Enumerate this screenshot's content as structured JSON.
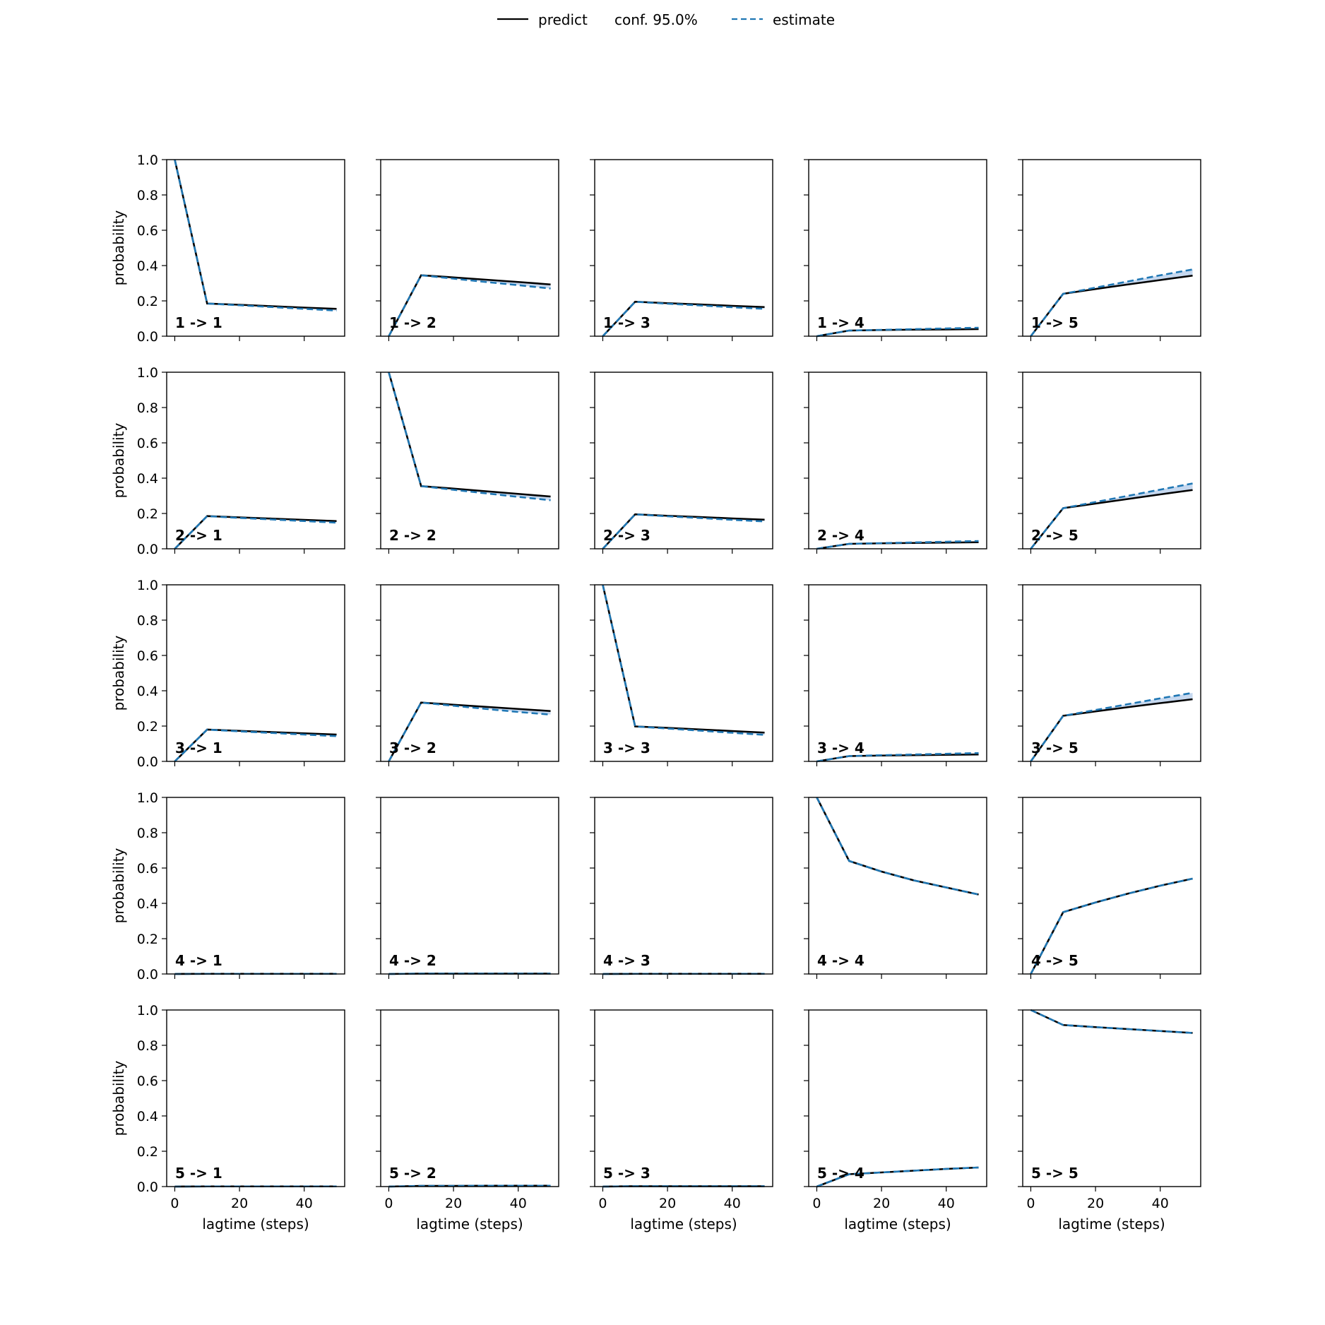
{
  "legend": {
    "items": [
      {
        "label": "predict",
        "style": "solid",
        "color": "#000000"
      },
      {
        "label": "conf. 95.0%",
        "style": "fill",
        "color": "#1f77b4"
      },
      {
        "label": "estimate",
        "style": "dashed",
        "color": "#1f77b4"
      }
    ]
  },
  "colors": {
    "predict": "#000000",
    "estimate": "#1f77b4",
    "confidence_fill": "#aec7e8"
  },
  "chart_data": {
    "type": "line",
    "layout": "5x5 grid of subplots, shared axes",
    "xlabel": "lagtime (steps)",
    "ylabel": "probability",
    "xlim": [
      -2.5,
      52.5
    ],
    "ylim": [
      0,
      1
    ],
    "xticks": [
      0,
      20,
      40
    ],
    "yticks": [
      0.0,
      0.2,
      0.4,
      0.6,
      0.8,
      1.0
    ],
    "x": [
      0,
      10,
      20,
      30,
      40,
      50
    ],
    "legend_position": "top-center",
    "panels": [
      {
        "label": "1 -> 1",
        "predict": [
          1.0,
          0.185,
          0.178,
          0.17,
          0.162,
          0.155
        ],
        "estimate": [
          1.0,
          0.185,
          0.175,
          0.165,
          0.155,
          0.145
        ]
      },
      {
        "label": "1 -> 2",
        "predict": [
          0.0,
          0.345,
          0.333,
          0.32,
          0.307,
          0.293
        ],
        "estimate": [
          0.0,
          0.345,
          0.326,
          0.307,
          0.289,
          0.27
        ]
      },
      {
        "label": "1 -> 3",
        "predict": [
          0.0,
          0.195,
          0.187,
          0.18,
          0.172,
          0.165
        ],
        "estimate": [
          0.0,
          0.195,
          0.184,
          0.174,
          0.164,
          0.155
        ]
      },
      {
        "label": "1 -> 4",
        "predict": [
          0.0,
          0.032,
          0.035,
          0.037,
          0.038,
          0.04
        ],
        "estimate": [
          0.0,
          0.032,
          0.036,
          0.04,
          0.044,
          0.048
        ]
      },
      {
        "label": "1 -> 5",
        "predict": [
          0.0,
          0.24,
          0.267,
          0.293,
          0.318,
          0.343
        ],
        "estimate": [
          0.0,
          0.24,
          0.275,
          0.31,
          0.345,
          0.378
        ]
      },
      {
        "label": "2 -> 1",
        "predict": [
          0.0,
          0.185,
          0.178,
          0.171,
          0.164,
          0.157
        ],
        "estimate": [
          0.0,
          0.185,
          0.175,
          0.166,
          0.157,
          0.148
        ]
      },
      {
        "label": "2 -> 2",
        "predict": [
          1.0,
          0.355,
          0.341,
          0.326,
          0.311,
          0.296
        ],
        "estimate": [
          1.0,
          0.355,
          0.334,
          0.314,
          0.294,
          0.275
        ]
      },
      {
        "label": "2 -> 3",
        "predict": [
          0.0,
          0.195,
          0.187,
          0.18,
          0.172,
          0.165
        ],
        "estimate": [
          0.0,
          0.195,
          0.184,
          0.174,
          0.164,
          0.155
        ]
      },
      {
        "label": "2 -> 4",
        "predict": [
          0.0,
          0.028,
          0.031,
          0.033,
          0.035,
          0.037
        ],
        "estimate": [
          0.0,
          0.028,
          0.032,
          0.036,
          0.04,
          0.044
        ]
      },
      {
        "label": "2 -> 5",
        "predict": [
          0.0,
          0.23,
          0.256,
          0.282,
          0.308,
          0.333
        ],
        "estimate": [
          0.0,
          0.23,
          0.265,
          0.3,
          0.335,
          0.37
        ]
      },
      {
        "label": "3 -> 1",
        "predict": [
          0.0,
          0.18,
          0.173,
          0.166,
          0.159,
          0.152
        ],
        "estimate": [
          0.0,
          0.18,
          0.17,
          0.161,
          0.152,
          0.143
        ]
      },
      {
        "label": "3 -> 2",
        "predict": [
          0.0,
          0.333,
          0.321,
          0.309,
          0.297,
          0.285
        ],
        "estimate": [
          0.0,
          0.333,
          0.315,
          0.297,
          0.28,
          0.265
        ]
      },
      {
        "label": "3 -> 3",
        "predict": [
          1.0,
          0.198,
          0.19,
          0.181,
          0.172,
          0.163
        ],
        "estimate": [
          1.0,
          0.198,
          0.186,
          0.174,
          0.162,
          0.15
        ]
      },
      {
        "label": "3 -> 4",
        "predict": [
          0.0,
          0.03,
          0.033,
          0.035,
          0.037,
          0.039
        ],
        "estimate": [
          0.0,
          0.03,
          0.035,
          0.039,
          0.043,
          0.047
        ]
      },
      {
        "label": "3 -> 5",
        "predict": [
          0.0,
          0.258,
          0.283,
          0.307,
          0.33,
          0.352
        ],
        "estimate": [
          0.0,
          0.258,
          0.291,
          0.324,
          0.357,
          0.388
        ]
      },
      {
        "label": "4 -> 1",
        "predict": [
          0.0,
          0.001,
          0.001,
          0.001,
          0.001,
          0.001
        ],
        "estimate": [
          0.0,
          0.001,
          0.001,
          0.001,
          0.001,
          0.001
        ]
      },
      {
        "label": "4 -> 2",
        "predict": [
          0.0,
          0.002,
          0.002,
          0.002,
          0.002,
          0.002
        ],
        "estimate": [
          0.0,
          0.002,
          0.002,
          0.002,
          0.002,
          0.002
        ]
      },
      {
        "label": "4 -> 3",
        "predict": [
          0.0,
          0.001,
          0.001,
          0.001,
          0.001,
          0.001
        ],
        "estimate": [
          0.0,
          0.001,
          0.001,
          0.001,
          0.001,
          0.001
        ]
      },
      {
        "label": "4 -> 4",
        "predict": [
          1.0,
          0.64,
          0.58,
          0.53,
          0.49,
          0.45
        ],
        "estimate": [
          1.0,
          0.64,
          0.58,
          0.53,
          0.49,
          0.45
        ]
      },
      {
        "label": "4 -> 5",
        "predict": [
          0.0,
          0.35,
          0.405,
          0.455,
          0.5,
          0.54
        ],
        "estimate": [
          0.0,
          0.35,
          0.405,
          0.455,
          0.5,
          0.54
        ]
      },
      {
        "label": "5 -> 1",
        "predict": [
          0.0,
          0.001,
          0.001,
          0.001,
          0.001,
          0.001
        ],
        "estimate": [
          0.0,
          0.001,
          0.001,
          0.001,
          0.001,
          0.001
        ]
      },
      {
        "label": "5 -> 2",
        "predict": [
          0.0,
          0.004,
          0.004,
          0.005,
          0.005,
          0.005
        ],
        "estimate": [
          0.0,
          0.004,
          0.004,
          0.005,
          0.005,
          0.005
        ]
      },
      {
        "label": "5 -> 3",
        "predict": [
          0.0,
          0.002,
          0.002,
          0.002,
          0.002,
          0.002
        ],
        "estimate": [
          0.0,
          0.002,
          0.002,
          0.002,
          0.002,
          0.002
        ]
      },
      {
        "label": "5 -> 4",
        "predict": [
          0.0,
          0.07,
          0.08,
          0.09,
          0.1,
          0.108
        ],
        "estimate": [
          0.0,
          0.07,
          0.08,
          0.09,
          0.1,
          0.108
        ]
      },
      {
        "label": "5 -> 5",
        "predict": [
          1.0,
          0.915,
          0.903,
          0.892,
          0.881,
          0.87
        ],
        "estimate": [
          1.0,
          0.915,
          0.903,
          0.892,
          0.881,
          0.87
        ]
      }
    ]
  }
}
